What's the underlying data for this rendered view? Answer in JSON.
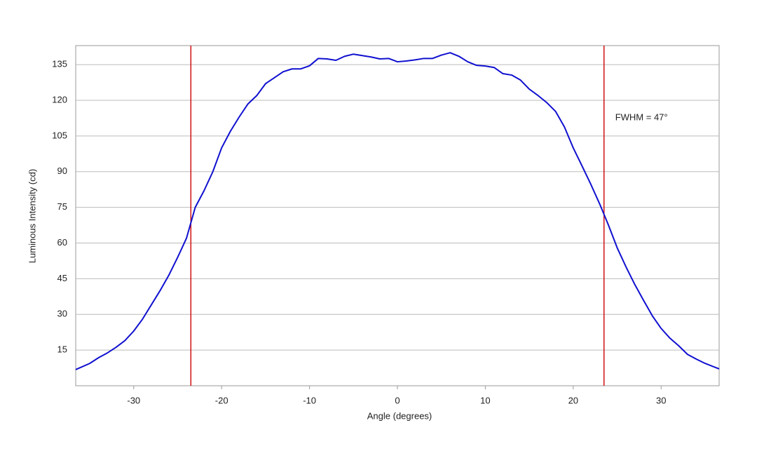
{
  "chart_data": {
    "type": "line",
    "x_label": "Angle (degrees)",
    "y_label": "Luminous Intensity (cd)",
    "x": [
      -36.6,
      -35,
      -34,
      -33,
      -32,
      -31,
      -30,
      -29,
      -28,
      -27,
      -26,
      -25,
      -24,
      -23,
      -22,
      -21,
      -20,
      -19,
      -18,
      -17,
      -16,
      -15,
      -14,
      -13,
      -12,
      -11,
      -10,
      -9,
      -8,
      -7,
      -6,
      -5,
      -4,
      -3,
      -2,
      -1,
      0,
      1,
      2,
      3,
      4,
      5,
      6,
      7,
      8,
      9,
      10,
      11,
      12,
      13,
      14,
      15,
      16,
      17,
      18,
      19,
      20,
      21,
      22,
      23,
      24,
      25,
      26,
      27,
      28,
      29,
      30,
      31,
      32,
      33,
      34,
      35,
      36.6
    ],
    "series": [
      {
        "name": "Luminous Intensity",
        "color": "#1010d0",
        "values": [
          6.8,
          9.4,
          11.8,
          13.8,
          16.2,
          19,
          23,
          28,
          34,
          40,
          46.5,
          54,
          62,
          75,
          82,
          90,
          100,
          107,
          113,
          118.5,
          122,
          127,
          129.5,
          132,
          133.2,
          133.2,
          134.5,
          137.6,
          137.4,
          136.8,
          138.5,
          139.4,
          138.8,
          138.2,
          137.4,
          137.6,
          136.2,
          136.5,
          137,
          137.6,
          137.6,
          139,
          140,
          138.5,
          136.2,
          134.7,
          134.4,
          133.8,
          131.2,
          130.6,
          128.5,
          124.7,
          122,
          119,
          115.3,
          108.8,
          100,
          92.4,
          84.7,
          76.5,
          67.6,
          58,
          50,
          42.6,
          35.9,
          29.4,
          24.1,
          20,
          16.8,
          13.2,
          11.2,
          9.4,
          7.1
        ]
      }
    ],
    "vlines": [
      -23.5,
      23.5
    ],
    "vline_color": "#d01010",
    "annotation": "FWHM = 47°",
    "xlim": [
      -36.6,
      36.6
    ],
    "ylim": [
      0,
      143
    ],
    "xticks": [
      -30,
      -20,
      -10,
      0,
      10,
      20,
      30
    ],
    "yticks": [
      15,
      30,
      45,
      60,
      75,
      90,
      105,
      120,
      135
    ],
    "grid": true
  }
}
